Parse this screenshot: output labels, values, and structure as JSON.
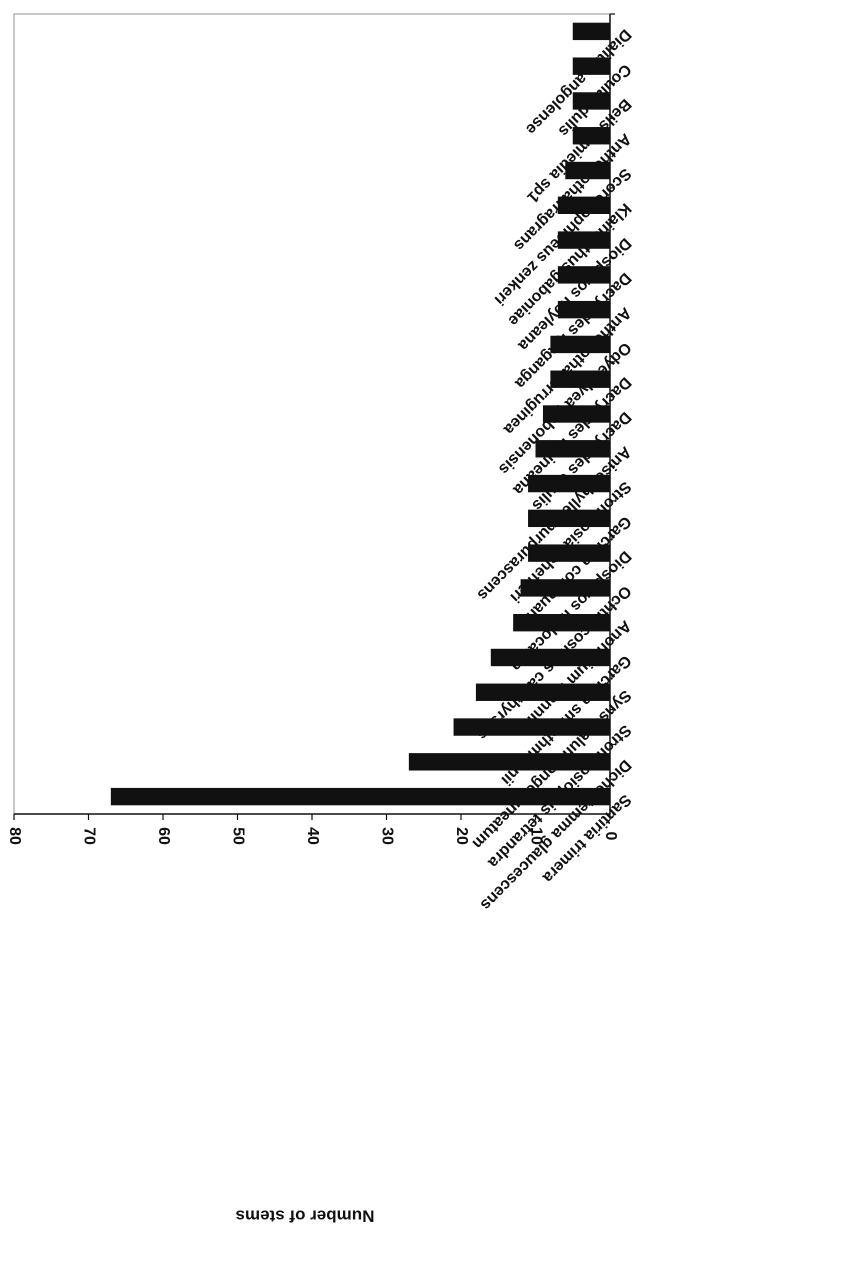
{
  "chart_data": {
    "type": "bar",
    "orientation": "horizontal",
    "ylabel": "Number of stems",
    "xlabel": "",
    "title": "",
    "ylim": [
      0,
      80
    ],
    "yticks": [
      "0",
      "10",
      "20",
      "30",
      "40",
      "50",
      "60",
      "70",
      "80"
    ],
    "grid": false,
    "legend": "none",
    "bar_color": "#111111",
    "categories": [
      "Dialium angolense",
      "Coula edulis",
      "Beilschmiedia sp1",
      "Anthonotha fragrans",
      "Scorodophloeus zenkeri",
      "Klainanthus gaboniae",
      "Diospyros hoyleana",
      "Dacryodes igaganga",
      "Anthonotha ferruginea",
      "Odyendyea gabonensis",
      "Dacryodes klaineana",
      "Dacryodes edulis",
      "Anisophyllea purpurascens",
      "Strombosia scheffleri",
      "Garcinia conrauana",
      "Diospyros melocarpa",
      "Ochthocosmus calothyrsus",
      "Anonidium mannii",
      "Garcinia smeathmannii",
      "Synsepalum longecuneatum",
      "Strombosiopsis tetrandra",
      "Dichostemma glaucescens",
      "Santiria trimera"
    ],
    "values": [
      5,
      5,
      5,
      5,
      6,
      7,
      7,
      7,
      7,
      8,
      8,
      9,
      10,
      11,
      11,
      11,
      12,
      13,
      16,
      18,
      21,
      27,
      67
    ]
  }
}
